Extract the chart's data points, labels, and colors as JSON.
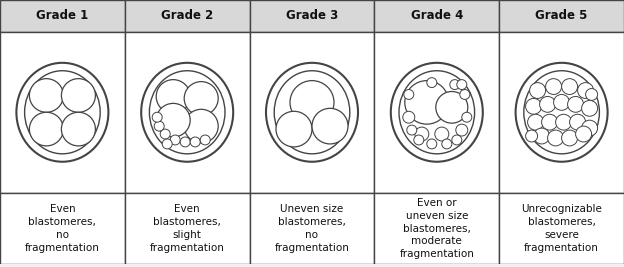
{
  "grades": [
    "Grade 1",
    "Grade 2",
    "Grade 3",
    "Grade 4",
    "Grade 5"
  ],
  "descriptions": [
    "Even\nblastomeres,\nno\nfragmentation",
    "Even\nblastomeres,\nslight\nfragmentation",
    "Uneven size\nblastomeres,\nno\nfragmentation",
    "Even or\nuneven size\nblastomeres,\nmoderate\nfragmentation",
    "Unrecognizable\nblastomeres,\nsevere\nfragmentation"
  ],
  "bg_color": "#f0f0f0",
  "header_bg": "#d8d8d8",
  "border_color": "#444444",
  "cell_color": "#ffffff",
  "text_color": "#111111",
  "circle_edge": "#444444",
  "title_fontsize": 8.5,
  "desc_fontsize": 7.5
}
